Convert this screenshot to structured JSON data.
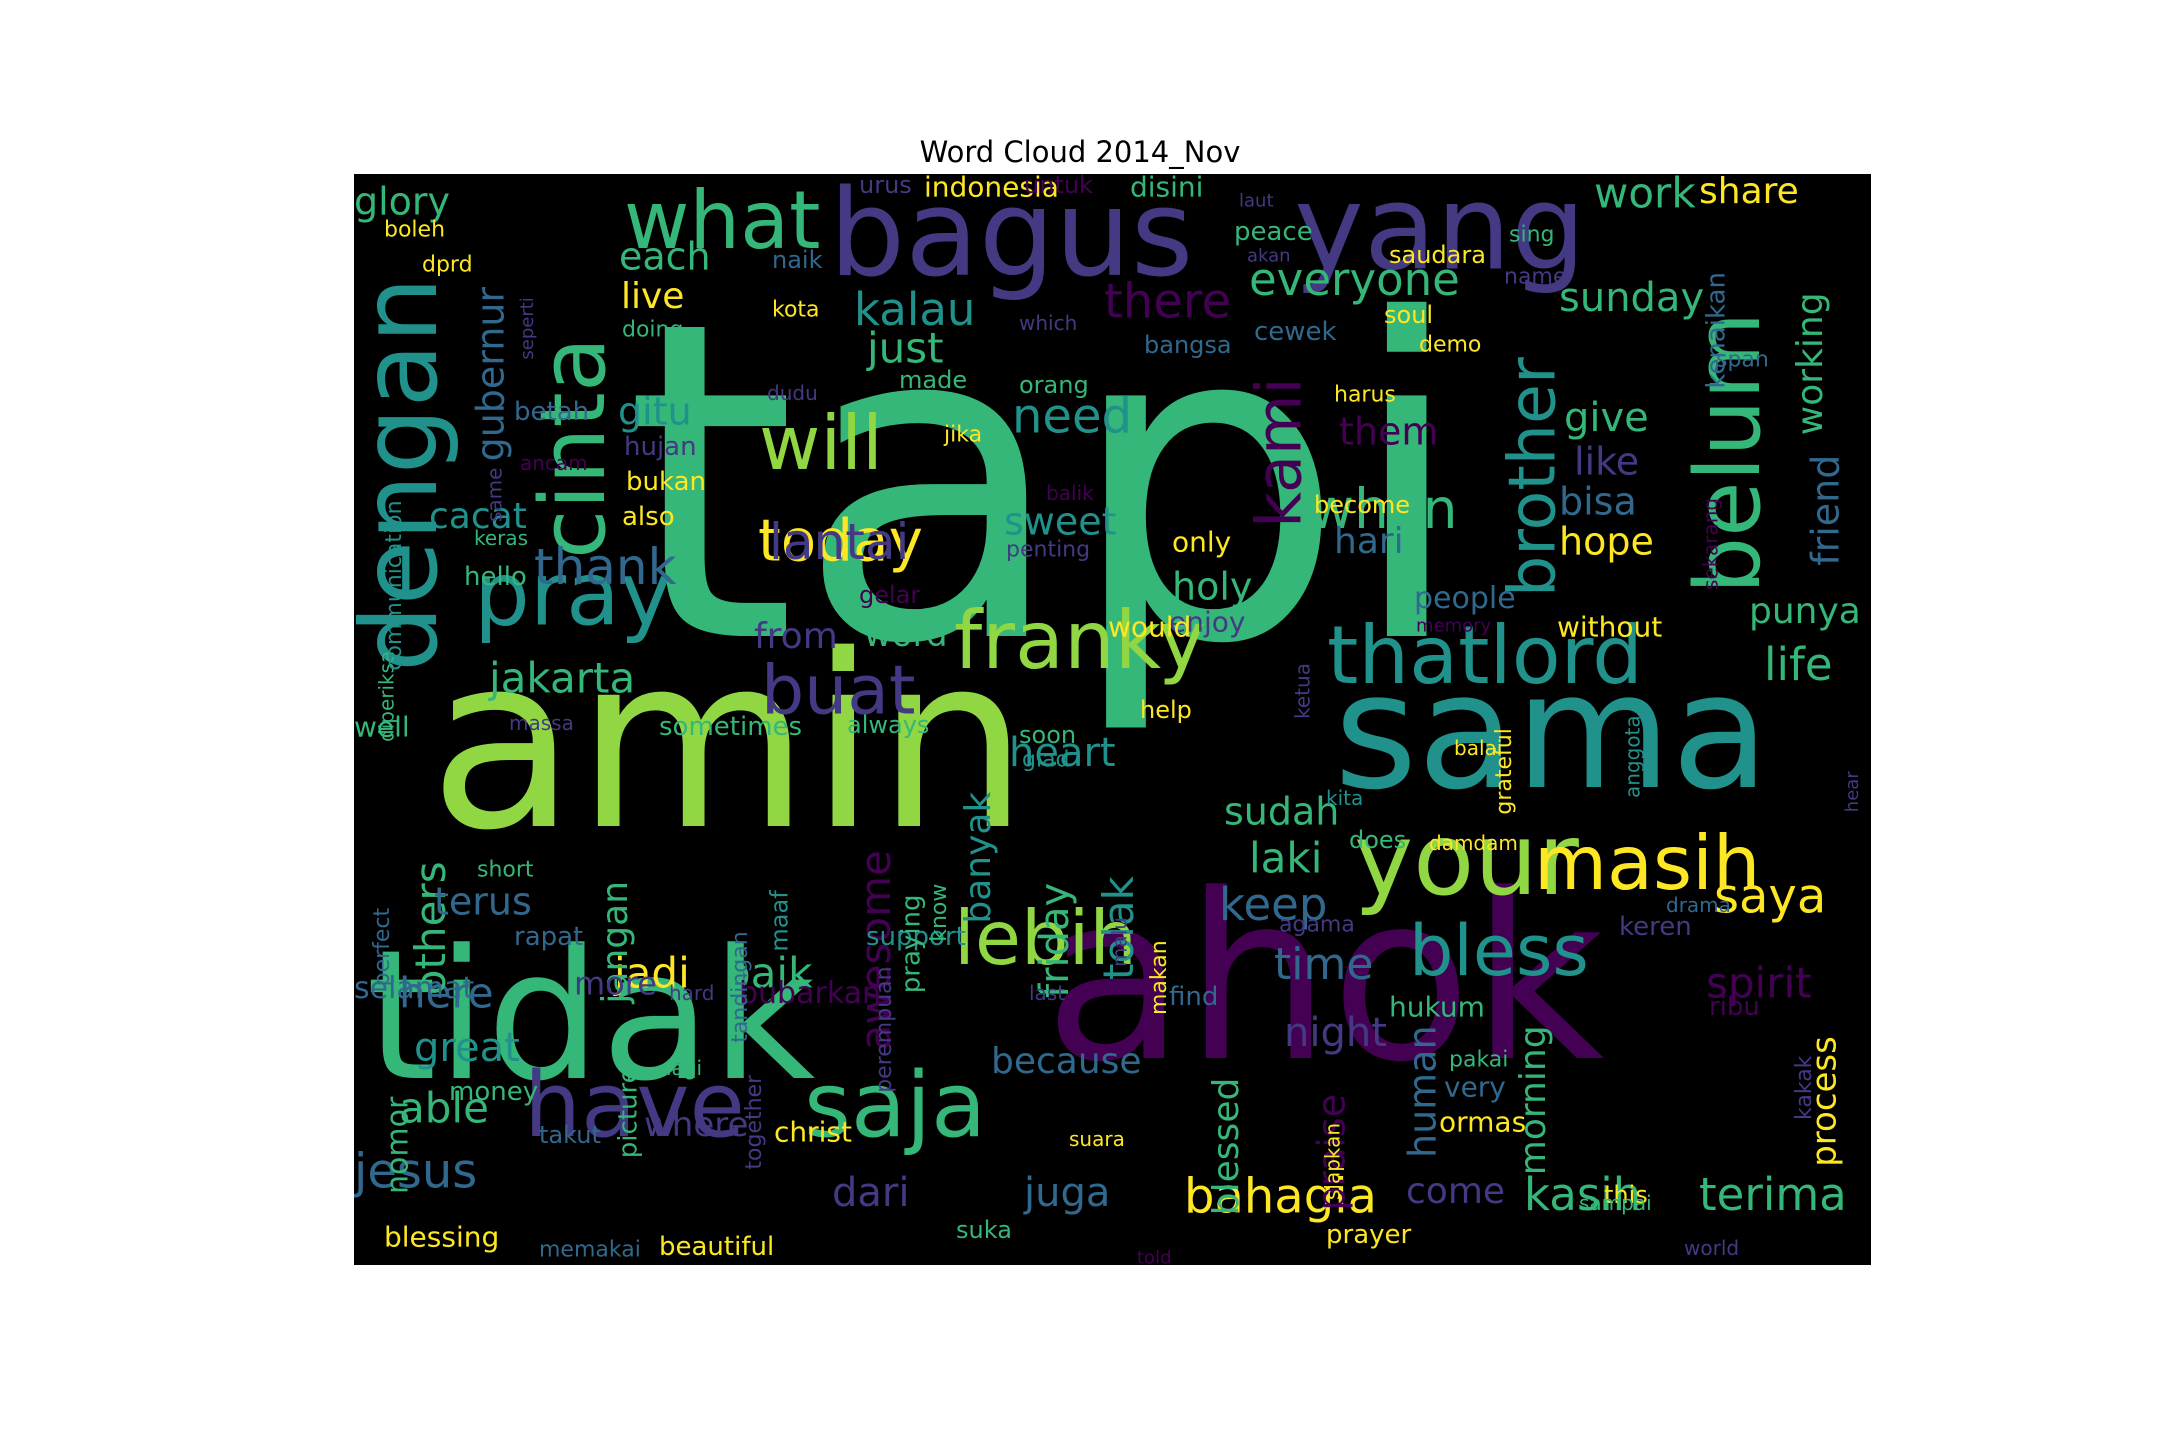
{
  "title": "Word Cloud 2014_Nov",
  "colors": {
    "background": "#000000",
    "palette": [
      "#440154",
      "#443983",
      "#31688e",
      "#21918c",
      "#35b779",
      "#90d743",
      "#fde725"
    ]
  },
  "words": [
    {
      "text": "tapi"
    },
    {
      "text": "amin"
    },
    {
      "text": "ahok"
    },
    {
      "text": "tidak"
    },
    {
      "text": "sama"
    },
    {
      "text": "dengan"
    },
    {
      "text": "bagus"
    },
    {
      "text": "yang"
    },
    {
      "text": "cinta"
    },
    {
      "text": "your"
    },
    {
      "text": "belum"
    },
    {
      "text": "what"
    },
    {
      "text": "pray"
    },
    {
      "text": "have"
    },
    {
      "text": "saja"
    },
    {
      "text": "franky"
    },
    {
      "text": "lebih"
    },
    {
      "text": "masih"
    },
    {
      "text": "bless"
    },
    {
      "text": "thatlord"
    },
    {
      "text": "buat"
    },
    {
      "text": "will"
    },
    {
      "text": "brother"
    },
    {
      "text": "today"
    },
    {
      "text": "kami"
    },
    {
      "text": "when"
    },
    {
      "text": "everyone"
    },
    {
      "text": "kalau"
    },
    {
      "text": "there"
    },
    {
      "text": "thank"
    },
    {
      "text": "jakarta"
    },
    {
      "text": "lantai"
    },
    {
      "text": "need"
    },
    {
      "text": "gubernur"
    },
    {
      "text": "glory"
    },
    {
      "text": "each"
    },
    {
      "text": "work"
    },
    {
      "text": "share"
    },
    {
      "text": "sunday"
    },
    {
      "text": "working"
    },
    {
      "text": "friend"
    },
    {
      "text": "life"
    },
    {
      "text": "punya"
    },
    {
      "text": "saya"
    },
    {
      "text": "spirit"
    },
    {
      "text": "kasih"
    },
    {
      "text": "terima"
    },
    {
      "text": "bahagia"
    },
    {
      "text": "process"
    },
    {
      "text": "jesus"
    },
    {
      "text": "able"
    },
    {
      "text": "great"
    },
    {
      "text": "here"
    },
    {
      "text": "jadi"
    },
    {
      "text": "baik"
    },
    {
      "text": "others"
    },
    {
      "text": "selamat"
    },
    {
      "text": "terus"
    },
    {
      "text": "jangan"
    },
    {
      "text": "banyak"
    },
    {
      "text": "friday"
    },
    {
      "text": "tolak"
    },
    {
      "text": "awesome"
    },
    {
      "text": "heart"
    },
    {
      "text": "sudah"
    },
    {
      "text": "laki"
    },
    {
      "text": "keep"
    },
    {
      "text": "time"
    },
    {
      "text": "night"
    },
    {
      "text": "blessed"
    },
    {
      "text": "because"
    },
    {
      "text": "human"
    },
    {
      "text": "morning"
    },
    {
      "text": "praise"
    },
    {
      "text": "come"
    },
    {
      "text": "juga"
    },
    {
      "text": "dari"
    },
    {
      "text": "where"
    },
    {
      "text": "nomor"
    },
    {
      "text": "blessing"
    },
    {
      "text": "beautiful"
    },
    {
      "text": "memakai"
    },
    {
      "text": "christ"
    },
    {
      "text": "takut"
    },
    {
      "text": "money"
    },
    {
      "text": "picture"
    },
    {
      "text": "together"
    },
    {
      "text": "lagi"
    },
    {
      "text": "hard"
    },
    {
      "text": "more"
    },
    {
      "text": "bubarkan"
    },
    {
      "text": "support"
    },
    {
      "text": "perempuan"
    },
    {
      "text": "last"
    },
    {
      "text": "find"
    },
    {
      "text": "hukum"
    },
    {
      "text": "pakai"
    },
    {
      "text": "very"
    },
    {
      "text": "ormas"
    },
    {
      "text": "kakak"
    },
    {
      "text": "ribu"
    },
    {
      "text": "keren"
    },
    {
      "text": "drama"
    },
    {
      "text": "agama"
    },
    {
      "text": "makan"
    },
    {
      "text": "malu"
    },
    {
      "text": "know"
    },
    {
      "text": "praying"
    },
    {
      "text": "maaf"
    },
    {
      "text": "tandingan"
    },
    {
      "text": "rapat"
    },
    {
      "text": "short"
    },
    {
      "text": "perfect"
    },
    {
      "text": "well"
    },
    {
      "text": "massa"
    },
    {
      "text": "sometimes"
    },
    {
      "text": "always"
    },
    {
      "text": "word"
    },
    {
      "text": "from"
    },
    {
      "text": "gelar"
    },
    {
      "text": "holy"
    },
    {
      "text": "enjoy"
    },
    {
      "text": "would"
    },
    {
      "text": "help"
    },
    {
      "text": "people"
    },
    {
      "text": "without"
    },
    {
      "text": "memory"
    },
    {
      "text": "hope"
    },
    {
      "text": "bisa"
    },
    {
      "text": "like"
    },
    {
      "text": "give"
    },
    {
      "text": "them"
    },
    {
      "text": "harus"
    },
    {
      "text": "become"
    },
    {
      "text": "hari"
    },
    {
      "text": "sweet"
    },
    {
      "text": "penting"
    },
    {
      "text": "only"
    },
    {
      "text": "balik"
    },
    {
      "text": "orang"
    },
    {
      "text": "made"
    },
    {
      "text": "just"
    },
    {
      "text": "dudu"
    },
    {
      "text": "jika"
    },
    {
      "text": "gitu"
    },
    {
      "text": "hujan"
    },
    {
      "text": "bukan"
    },
    {
      "text": "also"
    },
    {
      "text": "cacat"
    },
    {
      "text": "betah"
    },
    {
      "text": "same"
    },
    {
      "text": "ancam"
    },
    {
      "text": "keras"
    },
    {
      "text": "hello"
    },
    {
      "text": "diperiksa"
    },
    {
      "text": "communication"
    },
    {
      "text": "dprd"
    },
    {
      "text": "boleh"
    },
    {
      "text": "seperti"
    },
    {
      "text": "live"
    },
    {
      "text": "doing"
    },
    {
      "text": "kota"
    },
    {
      "text": "naik"
    },
    {
      "text": "urus"
    },
    {
      "text": "indonesia"
    },
    {
      "text": "untuk"
    },
    {
      "text": "disini"
    },
    {
      "text": "laut"
    },
    {
      "text": "peace"
    },
    {
      "text": "akan"
    },
    {
      "text": "saudara"
    },
    {
      "text": "sing"
    },
    {
      "text": "name"
    },
    {
      "text": "soul"
    },
    {
      "text": "demo"
    },
    {
      "text": "cewek"
    },
    {
      "text": "bangsa"
    },
    {
      "text": "which"
    },
    {
      "text": "kenaikan"
    },
    {
      "text": "span"
    },
    {
      "text": "sekarang"
    },
    {
      "text": "ketua"
    },
    {
      "text": "soon"
    },
    {
      "text": "glad"
    },
    {
      "text": "balai"
    },
    {
      "text": "anggota"
    },
    {
      "text": "grateful"
    },
    {
      "text": "kita"
    },
    {
      "text": "does"
    },
    {
      "text": "damdam"
    },
    {
      "text": "hear"
    },
    {
      "text": "suka"
    },
    {
      "text": "told"
    },
    {
      "text": "prayer"
    },
    {
      "text": "world"
    },
    {
      "text": "this"
    },
    {
      "text": "sampai"
    },
    {
      "text": "suara"
    },
    {
      "text": "siapkan"
    }
  ]
}
